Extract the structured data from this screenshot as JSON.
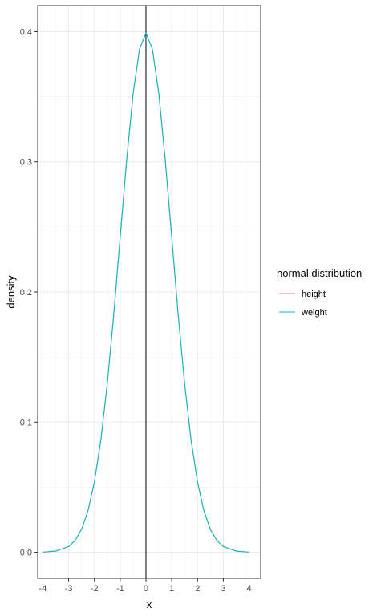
{
  "chart_data": {
    "type": "line",
    "xlabel": "x",
    "ylabel": "density",
    "xlim": [
      -4.2,
      4.45
    ],
    "ylim": [
      -0.02,
      0.42
    ],
    "x_ticks": [
      "-4",
      "-3",
      "-2",
      "-1",
      "0",
      "1",
      "2",
      "3",
      "4"
    ],
    "y_ticks": [
      "0.0",
      "0.1",
      "0.2",
      "0.3",
      "0.4"
    ],
    "x_tick_values": [
      -4,
      -3,
      -2,
      -1,
      0,
      1,
      2,
      3,
      4
    ],
    "y_tick_values": [
      0,
      0.1,
      0.2,
      0.3,
      0.4
    ],
    "grid": true,
    "vline_x": 0,
    "legend": {
      "title": "normal.distribution",
      "placement": "right",
      "entries": [
        "height",
        "weight"
      ]
    },
    "series": [
      {
        "name": "height",
        "color": "#F8766D",
        "x": [
          -4,
          -3.5,
          -3,
          -2.75,
          -2.5,
          -2.25,
          -2,
          -1.75,
          -1.5,
          -1.25,
          -1,
          -0.75,
          -0.5,
          -0.25,
          0,
          0.25,
          0.5,
          0.75,
          1,
          1.25,
          1.5,
          1.75,
          2,
          2.25,
          2.5,
          2.75,
          3,
          3.5,
          4
        ],
        "y": [
          0.0001,
          0.0009,
          0.0044,
          0.0091,
          0.0175,
          0.0317,
          0.054,
          0.0863,
          0.1295,
          0.1826,
          0.242,
          0.3011,
          0.3521,
          0.3867,
          0.3989,
          0.3867,
          0.3521,
          0.3011,
          0.242,
          0.1826,
          0.1295,
          0.0863,
          0.054,
          0.0317,
          0.0175,
          0.0091,
          0.0044,
          0.0009,
          0.0001
        ]
      },
      {
        "name": "weight",
        "color": "#00BFC4",
        "x": [
          -4,
          -3.5,
          -3,
          -2.75,
          -2.5,
          -2.25,
          -2,
          -1.75,
          -1.5,
          -1.25,
          -1,
          -0.75,
          -0.5,
          -0.25,
          0,
          0.25,
          0.5,
          0.75,
          1,
          1.25,
          1.5,
          1.75,
          2,
          2.25,
          2.5,
          2.75,
          3,
          3.5,
          4
        ],
        "y": [
          0.0001,
          0.0009,
          0.0044,
          0.0091,
          0.0175,
          0.0317,
          0.054,
          0.0863,
          0.1295,
          0.1826,
          0.242,
          0.3011,
          0.3521,
          0.3867,
          0.3989,
          0.3867,
          0.3521,
          0.3011,
          0.242,
          0.1826,
          0.1295,
          0.0863,
          0.054,
          0.0317,
          0.0175,
          0.0091,
          0.0044,
          0.0009,
          0.0001
        ]
      }
    ]
  }
}
